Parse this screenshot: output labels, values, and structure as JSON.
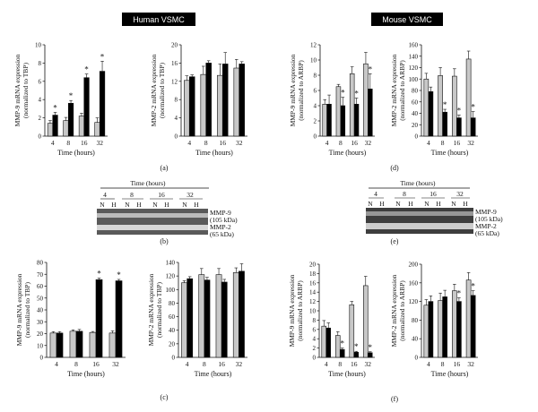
{
  "headers": {
    "human": "Human VSMC",
    "mouse": "Mouse VSMC"
  },
  "colors": {
    "normoxia": "#c8c8c8",
    "hypoxia": "#000000"
  },
  "panel_labels": [
    "(a)",
    "(b)",
    "(c)",
    "(d)",
    "(e)",
    "(f)"
  ],
  "gels": [
    {
      "panel": "(b)",
      "time_label": "Time (hours)",
      "times": [
        "4",
        "8",
        "16",
        "32"
      ],
      "conditions": [
        "N",
        "H",
        "N",
        "H",
        "N",
        "H",
        "N",
        "H"
      ],
      "bands": [
        "MMP-9",
        "(105 kDa)",
        "MMP-2",
        "(65 kDa)"
      ]
    },
    {
      "panel": "(e)",
      "time_label": "Time (hours)",
      "times": [
        "4",
        "8",
        "16",
        "32"
      ],
      "conditions": [
        "N",
        "H",
        "N",
        "H",
        "N",
        "H",
        "N",
        "H"
      ],
      "bands": [
        "MMP-9",
        "(105 kDa)",
        "MMP-2",
        "(65 kDa)"
      ]
    }
  ],
  "chart_data": [
    {
      "panel": "(a)",
      "type": "bar",
      "xlabel": "Time (hours)",
      "ylabel": [
        "MMP-9 mRNA expression",
        "(normalized to TBP)"
      ],
      "categories": [
        "4",
        "8",
        "16",
        "32"
      ],
      "ylim": [
        0,
        10
      ],
      "yticks": [
        0,
        2,
        4,
        6,
        8,
        10
      ],
      "series": [
        {
          "values": [
            1.4,
            1.7,
            2.2,
            1.5
          ],
          "errors": [
            0.3,
            0.35,
            0.3,
            0.5
          ]
        },
        {
          "values": [
            2.3,
            3.6,
            6.4,
            7.1
          ],
          "errors": [
            0.3,
            0.3,
            0.4,
            1.1
          ]
        }
      ],
      "significant": [
        "4",
        "8",
        "16",
        "32"
      ]
    },
    {
      "panel": "(a)",
      "type": "bar",
      "xlabel": "Time (hours)",
      "ylabel": [
        "MMP-2 mRNA expression",
        "(normalized to TBP)"
      ],
      "categories": [
        "4",
        "8",
        "16",
        "32"
      ],
      "ylim": [
        0,
        20
      ],
      "yticks": [
        0,
        4,
        8,
        12,
        16,
        20
      ],
      "series": [
        {
          "values": [
            12.2,
            13.5,
            13.3,
            14.9
          ],
          "errors": [
            1.0,
            1.8,
            2.5,
            1.9
          ]
        },
        {
          "values": [
            13.0,
            16.0,
            15.8,
            15.8
          ],
          "errors": [
            0.4,
            0.5,
            2.5,
            0.5
          ]
        }
      ],
      "significant": []
    },
    {
      "panel": "(d)",
      "type": "bar",
      "xlabel": "Time (hours)",
      "ylabel": [
        "MMP-9 mRNA expression",
        "(normalized to ARBP)"
      ],
      "categories": [
        "4",
        "8",
        "16",
        "32"
      ],
      "ylim": [
        0,
        12
      ],
      "yticks": [
        0,
        2,
        4,
        6,
        8,
        10,
        12
      ],
      "series": [
        {
          "values": [
            4.2,
            6.5,
            8.2,
            9.5
          ],
          "errors": [
            0.6,
            0.3,
            0.9,
            1.5
          ]
        },
        {
          "values": [
            4.2,
            4.0,
            4.2,
            6.2
          ],
          "errors": [
            1.2,
            1.1,
            0.8,
            2.0
          ]
        }
      ],
      "significant": [
        "8",
        "16",
        "32"
      ]
    },
    {
      "panel": "(d)",
      "type": "bar",
      "xlabel": "Time (hours)",
      "ylabel": [
        "MMP-2 mRNA expression",
        "(normalized to ARBP)"
      ],
      "categories": [
        "4",
        "8",
        "16",
        "32"
      ],
      "ylim": [
        0,
        160
      ],
      "yticks": [
        0,
        20,
        40,
        60,
        80,
        100,
        120,
        140,
        160
      ],
      "series": [
        {
          "values": [
            100,
            106,
            105,
            135
          ],
          "errors": [
            10,
            14,
            13,
            14
          ]
        },
        {
          "values": [
            78,
            42,
            32,
            32
          ],
          "errors": [
            8,
            5,
            5,
            11
          ]
        }
      ],
      "significant": [
        "8",
        "16",
        "32"
      ]
    },
    {
      "panel": "(c)",
      "type": "bar",
      "xlabel": "Time (hours)",
      "ylabel": [
        "MMP-9 mRNA expression",
        "(normalized to TBP)"
      ],
      "categories": [
        "4",
        "8",
        "16",
        "32"
      ],
      "ylim": [
        0,
        80
      ],
      "yticks": [
        0,
        10,
        20,
        30,
        40,
        50,
        60,
        70,
        80
      ],
      "series": [
        {
          "values": [
            20.5,
            22,
            21,
            20.5
          ],
          "errors": [
            1.2,
            1.2,
            0.8,
            1.8
          ]
        },
        {
          "values": [
            20.5,
            22,
            65.5,
            64.5
          ],
          "errors": [
            1.2,
            1.5,
            1.2,
            1.2
          ]
        }
      ],
      "significant": [
        "16",
        "32"
      ]
    },
    {
      "panel": "(c)",
      "type": "bar",
      "xlabel": "Time (hours)",
      "ylabel": [
        "MMP-2 mRNA expression",
        "(normalized to TBP)"
      ],
      "categories": [
        "4",
        "8",
        "16",
        "32"
      ],
      "ylim": [
        0,
        140
      ],
      "yticks": [
        0,
        20,
        40,
        60,
        80,
        100,
        120,
        140
      ],
      "series": [
        {
          "values": [
            110,
            122,
            122,
            125
          ],
          "errors": [
            3,
            9,
            9,
            7
          ]
        },
        {
          "values": [
            116,
            114,
            111,
            127
          ],
          "errors": [
            3,
            4,
            4,
            11
          ]
        }
      ],
      "significant": []
    },
    {
      "panel": "(f)",
      "type": "bar",
      "xlabel": "Time (hours)",
      "ylabel": [
        "MMP-9 mRNA expression",
        "(normalized to ARBP)"
      ],
      "categories": [
        "4",
        "8",
        "16",
        "32"
      ],
      "ylim": [
        0,
        20
      ],
      "yticks": [
        0,
        2,
        4,
        6,
        8,
        10,
        12,
        14,
        16,
        18,
        20
      ],
      "series": [
        {
          "values": [
            6.7,
            4.7,
            11.3,
            15.4
          ],
          "errors": [
            1.2,
            0.8,
            0.7,
            2.0
          ]
        },
        {
          "values": [
            6.3,
            1.7,
            1.1,
            1.0
          ],
          "errors": [
            1.1,
            0.3,
            0.2,
            0.2
          ]
        }
      ],
      "significant": [
        "8",
        "16",
        "32"
      ]
    },
    {
      "panel": "(f)",
      "type": "bar",
      "xlabel": "Time (hours)",
      "ylabel": [
        "MMP-2 mRNA expression",
        "(normalized to ARBP)"
      ],
      "categories": [
        "4",
        "8",
        "16",
        "32"
      ],
      "ylim": [
        0,
        200
      ],
      "yticks": [
        0,
        40,
        80,
        120,
        160,
        200
      ],
      "series": [
        {
          "values": [
            112,
            122,
            143,
            166
          ],
          "errors": [
            12,
            16,
            14,
            16
          ]
        },
        {
          "values": [
            120,
            130,
            120,
            133
          ],
          "errors": [
            12,
            14,
            8,
            10
          ]
        }
      ],
      "significant": [
        "16",
        "32"
      ]
    }
  ]
}
